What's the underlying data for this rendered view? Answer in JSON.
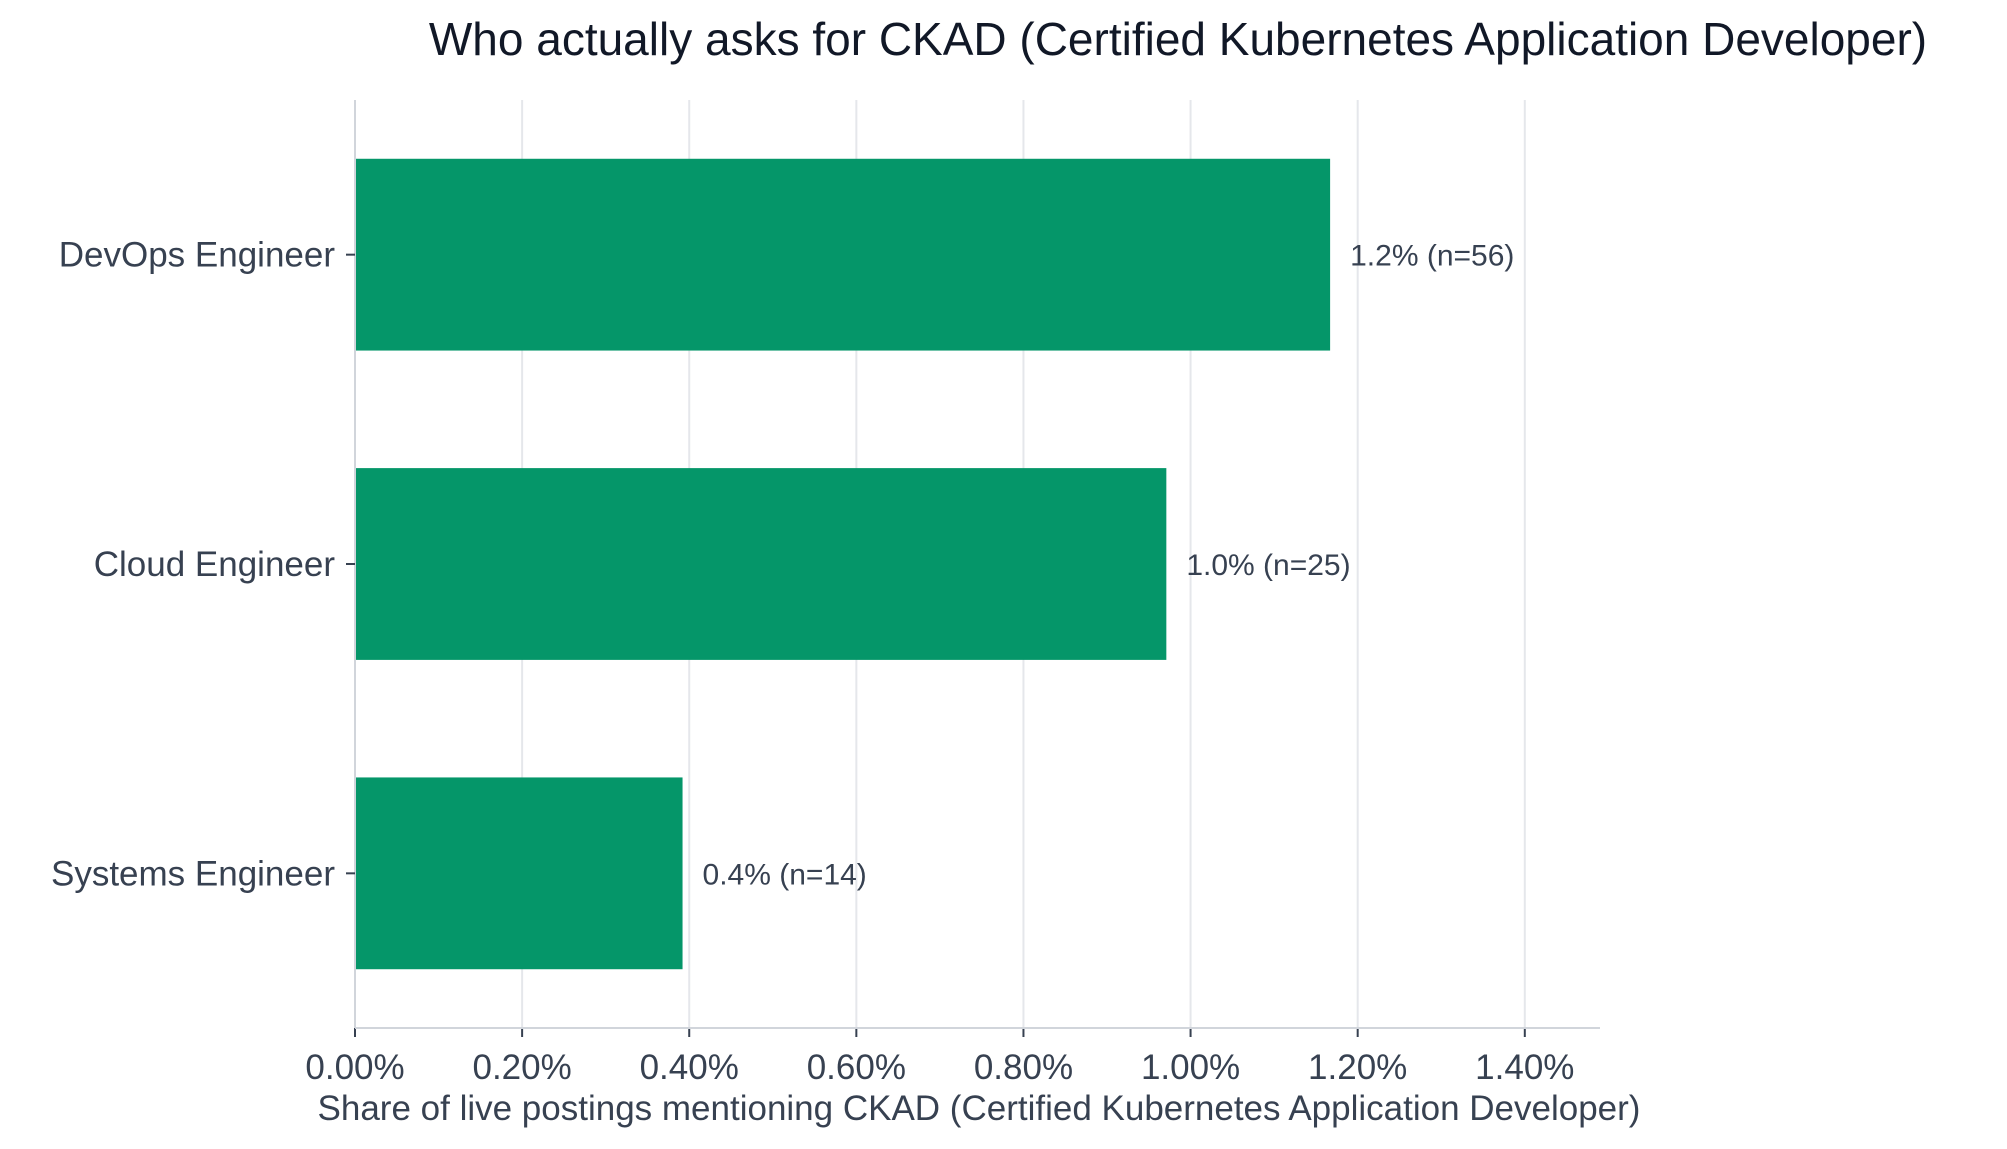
{
  "chart_data": {
    "type": "bar",
    "orientation": "horizontal",
    "title": "Who actually asks for CKAD (Certified Kubernetes Application Developer)",
    "xlabel": "Share of live postings mentioning CKAD (Certified Kubernetes Application Developer)",
    "ylabel": "",
    "categories": [
      "DevOps Engineer",
      "Cloud Engineer",
      "Systems Engineer"
    ],
    "values": [
      1.167,
      0.971,
      0.392
    ],
    "value_unit": "percent",
    "data_labels": [
      "1.2%  (n=56)",
      "1.0%  (n=25)",
      "0.4%  (n=14)"
    ],
    "counts": [
      56,
      25,
      14
    ],
    "xlim": [
      0,
      1.49
    ],
    "xticks": [
      0,
      0.2,
      0.4,
      0.6,
      0.8,
      1.0,
      1.2,
      1.4
    ],
    "xtick_labels": [
      "0.00%",
      "0.20%",
      "0.40%",
      "0.60%",
      "0.80%",
      "1.00%",
      "1.20%",
      "1.40%"
    ],
    "grid": "vertical",
    "legend": "none",
    "bar_color": "#059669"
  }
}
